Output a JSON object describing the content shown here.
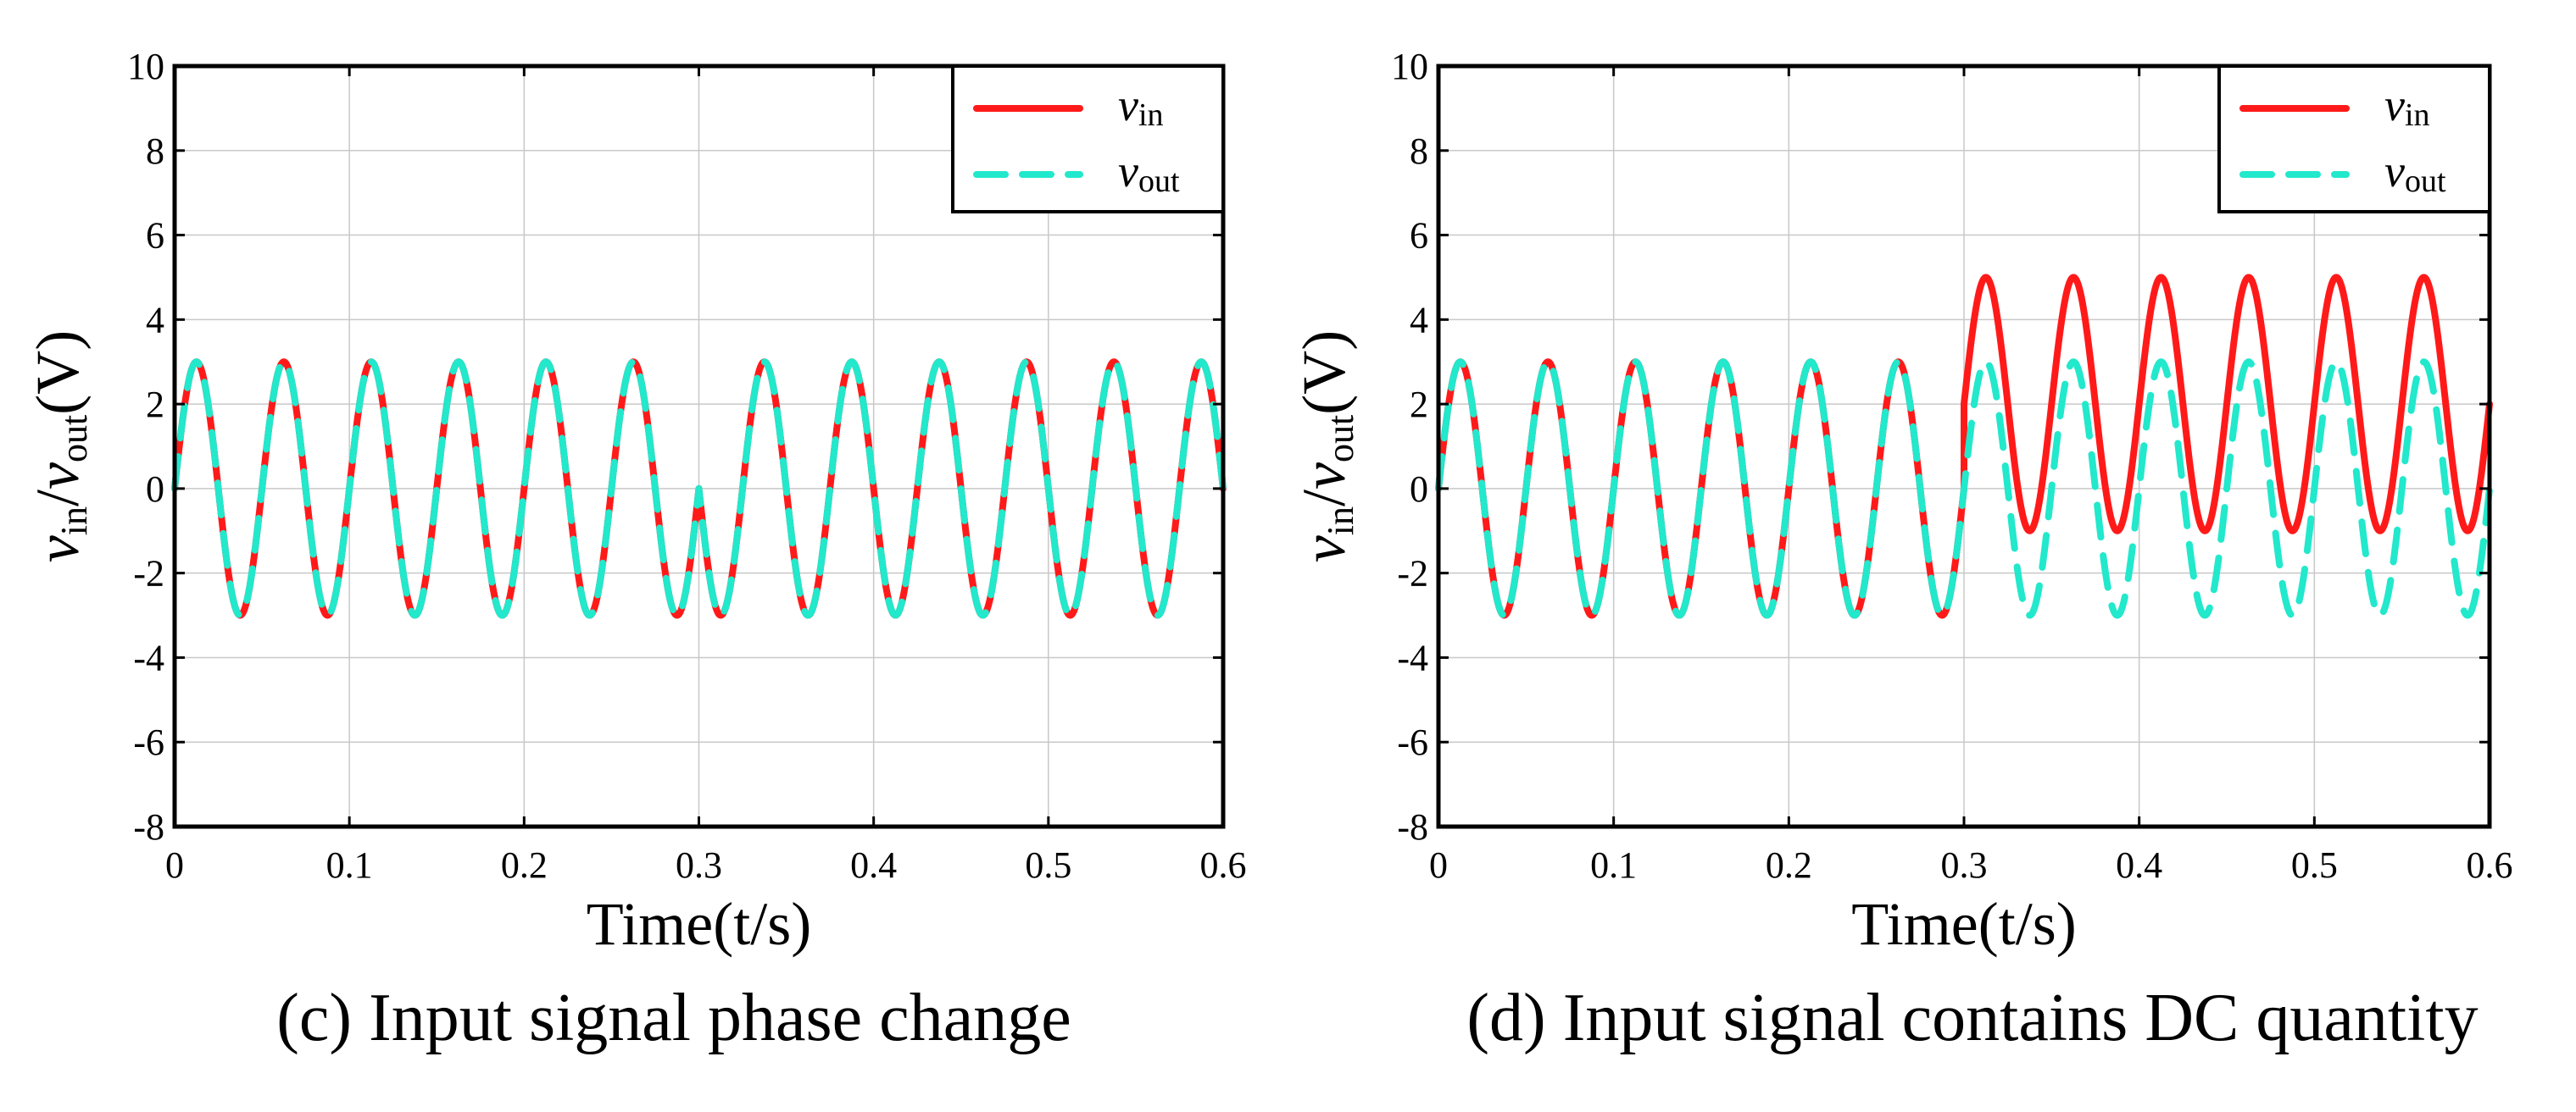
{
  "colors": {
    "vin": "#ff1a1a",
    "vout": "#22e8cc"
  },
  "chart_data": [
    {
      "type": "line",
      "caption": "(c) Input signal phase change",
      "xlabel": "Time(t/s)",
      "ylabel": {
        "v1": "v",
        "s1": "in",
        "sep": "/",
        "v2": "v",
        "s2": "out",
        "unit": "(V)"
      },
      "xlim": [
        0,
        0.6
      ],
      "ylim": [
        -8,
        10
      ],
      "xticks": [
        0,
        0.1,
        0.2,
        0.3,
        0.4,
        0.5,
        0.6
      ],
      "xtick_labels": [
        "0",
        "0.1",
        "0.2",
        "0.3",
        "0.4",
        "0.5",
        "0.6"
      ],
      "yticks": [
        -8,
        -6,
        -4,
        -2,
        0,
        2,
        4,
        6,
        8,
        10
      ],
      "ytick_labels": [
        "-8",
        "-6",
        "-4",
        "-2",
        "0",
        "2",
        "4",
        "6",
        "8",
        "10"
      ],
      "grid": true,
      "legend": {
        "placement": "top-right",
        "entries": [
          {
            "var": "v",
            "sub": "in",
            "style": "solid",
            "series": "vin"
          },
          {
            "var": "v",
            "sub": "out",
            "style": "dashed",
            "series": "vout"
          }
        ]
      },
      "series": [
        {
          "name": "vin",
          "style": "solid",
          "segments": [
            {
              "t_start": 0,
              "t_end": 0.3,
              "amplitude": 3,
              "frequency_hz": 20,
              "phase_deg": 0,
              "offset": 0
            },
            {
              "t_start": 0.3,
              "t_end": 0.6,
              "amplitude": 3,
              "frequency_hz": 20,
              "phase_deg": 180,
              "offset": 0
            }
          ]
        },
        {
          "name": "vout",
          "style": "dashed",
          "segments": [
            {
              "t_start": 0,
              "t_end": 0.3,
              "amplitude": 3,
              "frequency_hz": 20,
              "phase_deg": 0,
              "offset": 0
            },
            {
              "t_start": 0.3,
              "t_end": 0.6,
              "amplitude": 3,
              "frequency_hz": 20,
              "phase_deg": 180,
              "offset": 0
            }
          ]
        }
      ]
    },
    {
      "type": "line",
      "caption": "(d) Input signal contains DC quantity",
      "xlabel": "Time(t/s)",
      "ylabel": {
        "v1": "v",
        "s1": "in",
        "sep": "/",
        "v2": "v",
        "s2": "out",
        "unit": "(V)"
      },
      "xlim": [
        0,
        0.6
      ],
      "ylim": [
        -8,
        10
      ],
      "xticks": [
        0,
        0.1,
        0.2,
        0.3,
        0.4,
        0.5,
        0.6
      ],
      "xtick_labels": [
        "0",
        "0.1",
        "0.2",
        "0.3",
        "0.4",
        "0.5",
        "0.6"
      ],
      "yticks": [
        -8,
        -6,
        -4,
        -2,
        0,
        2,
        4,
        6,
        8,
        10
      ],
      "ytick_labels": [
        "-8",
        "-6",
        "-4",
        "-2",
        "0",
        "2",
        "4",
        "6",
        "8",
        "10"
      ],
      "grid": true,
      "legend": {
        "placement": "top-right",
        "entries": [
          {
            "var": "v",
            "sub": "in",
            "style": "solid",
            "series": "vin"
          },
          {
            "var": "v",
            "sub": "out",
            "style": "dashed",
            "series": "vout"
          }
        ]
      },
      "series": [
        {
          "name": "vin",
          "style": "solid",
          "segments": [
            {
              "t_start": 0,
              "t_end": 0.3,
              "amplitude": 3,
              "frequency_hz": 20,
              "phase_deg": 0,
              "offset": 0
            },
            {
              "t_start": 0.3,
              "t_end": 0.6,
              "amplitude": 3,
              "frequency_hz": 20,
              "phase_deg": 0,
              "offset": 2
            }
          ]
        },
        {
          "name": "vout",
          "style": "dashed",
          "segments": [
            {
              "t_start": 0,
              "t_end": 0.3,
              "amplitude": 3,
              "frequency_hz": 20,
              "phase_deg": 0,
              "offset": 0
            },
            {
              "t_start": 0.3,
              "t_end": 0.6,
              "amplitude": 3,
              "frequency_hz": 20,
              "phase_deg": 0,
              "offset": 0
            }
          ]
        }
      ]
    }
  ]
}
